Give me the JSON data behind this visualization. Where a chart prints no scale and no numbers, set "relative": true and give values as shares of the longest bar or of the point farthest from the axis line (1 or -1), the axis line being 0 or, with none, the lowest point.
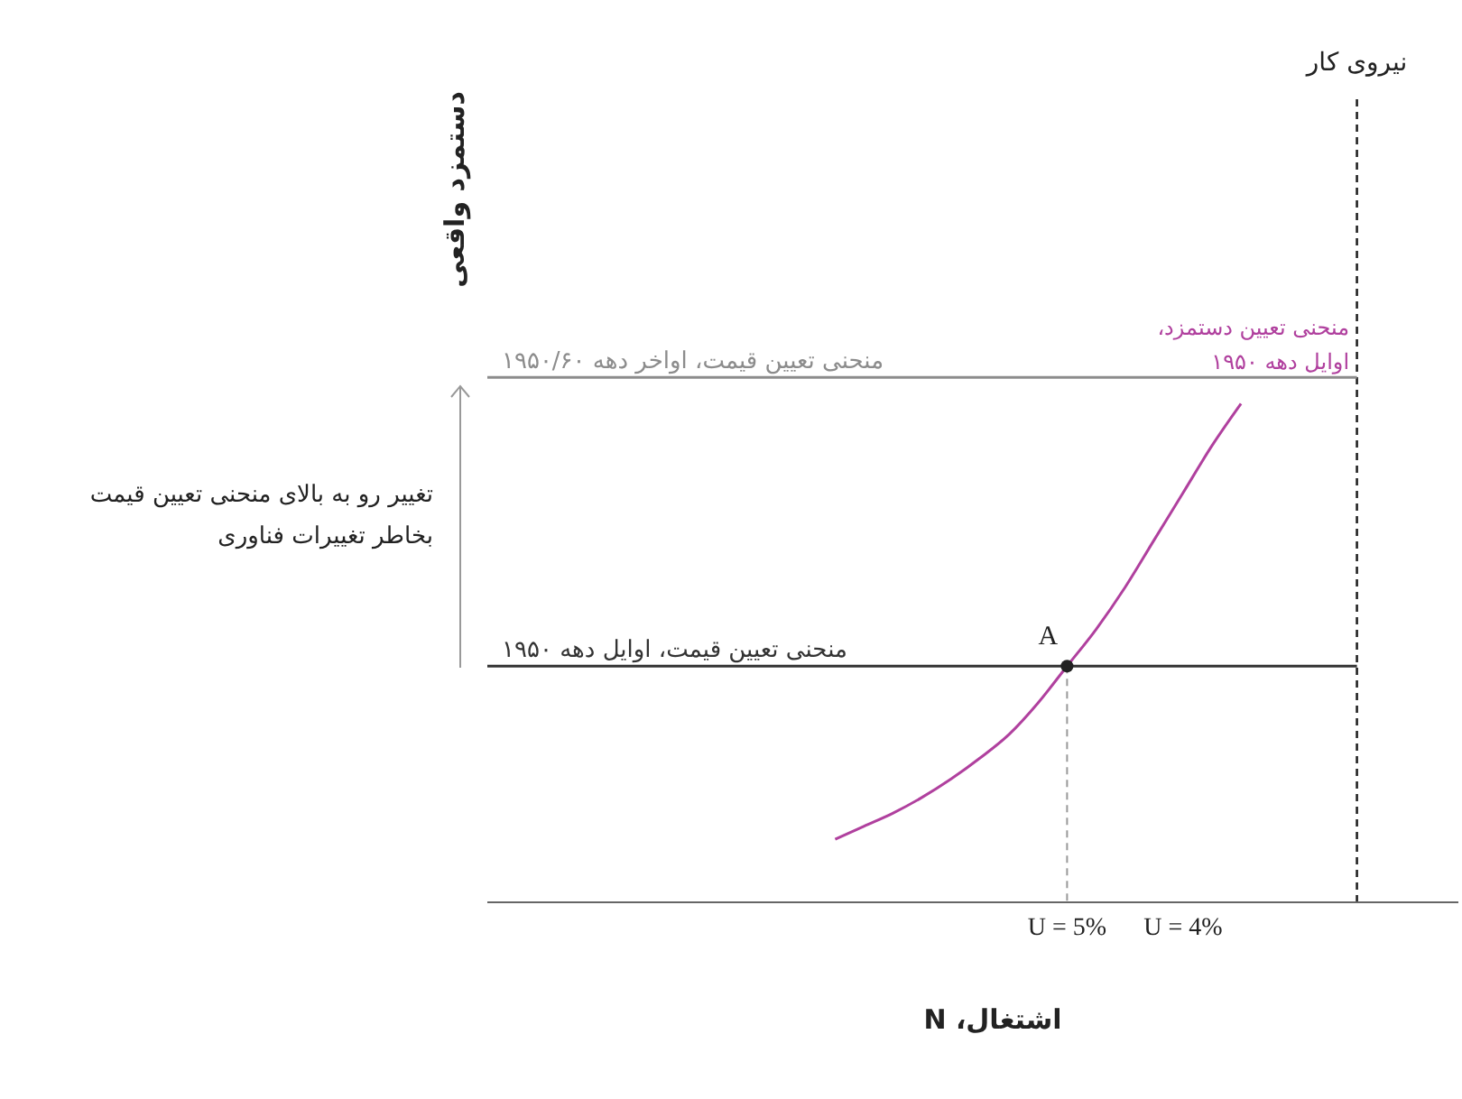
{
  "chart_data": {
    "type": "line",
    "relative": true,
    "xlabel": "اشتغال، N",
    "ylabel": "دستمزد واقعی",
    "categories": [
      null,
      null,
      null,
      null,
      null,
      null,
      null,
      null,
      null,
      null,
      null,
      null,
      null,
      null,
      null,
      null,
      null,
      null,
      null,
      null,
      "U = 5%",
      null,
      null,
      null,
      "U = 4%",
      null,
      null,
      null,
      null,
      null,
      null,
      null,
      null,
      null
    ],
    "series": [
      {
        "name": "منحنی تعیین قیمت، اواخر دهه ۱۹۵۰/۶۰",
        "color": "#8c8c8c",
        "values": [
          1,
          1,
          1,
          1,
          1,
          1,
          1,
          1,
          1,
          1,
          1,
          1,
          1,
          1,
          1,
          1,
          1,
          1,
          1,
          1,
          1,
          1,
          1,
          1,
          1,
          1,
          1,
          1,
          1,
          1,
          1,
          null,
          null,
          null
        ]
      },
      {
        "name": "منحنی تعیین قیمت، اوایل دهه ۱۹۵۰",
        "color": "#333333",
        "values": [
          0.45,
          0.45,
          0.45,
          0.45,
          0.45,
          0.45,
          0.45,
          0.45,
          0.45,
          0.45,
          0.45,
          0.45,
          0.45,
          0.45,
          0.45,
          0.45,
          0.45,
          0.45,
          0.45,
          0.45,
          0.45,
          0.45,
          0.45,
          0.45,
          0.45,
          0.45,
          0.45,
          0.45,
          0.45,
          0.45,
          0.45,
          null,
          null,
          null
        ]
      },
      {
        "name": "منحنی تعیین دستمزد، اوایل دهه ۱۹۵۰",
        "color": "#b0409e",
        "values": [
          null,
          null,
          null,
          null,
          null,
          null,
          null,
          null,
          null,
          null,
          null,
          null,
          0.12,
          0.145,
          0.17,
          0.2,
          0.235,
          0.275,
          0.32,
          0.38,
          0.45,
          0.52,
          0.6,
          0.69,
          0.78,
          0.87,
          0.95,
          null,
          null,
          null,
          null,
          null,
          null,
          null
        ]
      },
      {
        "type": "scatter",
        "color": "#222222",
        "values": [
          null,
          null,
          null,
          null,
          null,
          null,
          null,
          null,
          null,
          null,
          null,
          null,
          null,
          null,
          null,
          null,
          null,
          null,
          null,
          null,
          0.45,
          null,
          null,
          null,
          null,
          null,
          null,
          null,
          null,
          null,
          null,
          null,
          null,
          null
        ],
        "marker": "circle"
      }
    ],
    "annotations": [
      {
        "text": "A",
        "x": "U = 5%",
        "y": 0.45
      },
      "نیروی کار",
      "تغییر رو به بالای منحنی تعیین قیمت بخاطر تغییرات فناوری"
    ]
  }
}
